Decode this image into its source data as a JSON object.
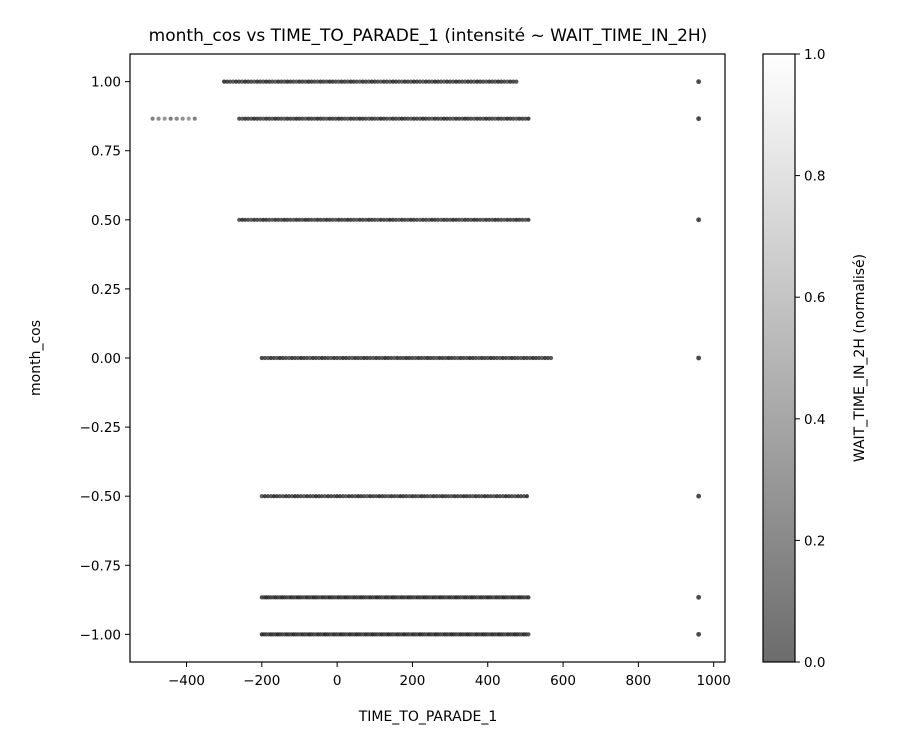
{
  "chart_data": {
    "type": "scatter",
    "title": "month_cos vs TIME_TO_PARADE_1 (intensité ~ WAIT_TIME_IN_2H)",
    "xlabel": "TIME_TO_PARADE_1",
    "ylabel": "month_cos",
    "xlim": [
      -550,
      1030
    ],
    "ylim": [
      -1.1,
      1.1
    ],
    "x_ticks": [
      -400,
      -200,
      0,
      200,
      400,
      600,
      800,
      1000
    ],
    "x_tick_labels": [
      "−400",
      "−200",
      "0",
      "200",
      "400",
      "600",
      "800",
      "1000"
    ],
    "y_ticks": [
      1.0,
      0.75,
      0.5,
      0.25,
      0.0,
      -0.25,
      -0.5,
      -0.75,
      -1.0
    ],
    "y_tick_labels": [
      "1.00",
      "0.75",
      "0.50",
      "0.25",
      "0.00",
      "−0.25",
      "−0.50",
      "−0.75",
      "−1.00"
    ],
    "grid": false,
    "colorbar": {
      "label": "WAIT_TIME_IN_2H (normalisé)",
      "range": [
        0,
        1
      ],
      "ticks": [
        0.0,
        0.2,
        0.4,
        0.6,
        0.8,
        1.0
      ],
      "tick_labels": [
        "0.0",
        "0.2",
        "0.4",
        "0.6",
        "0.8",
        "1.0"
      ],
      "colormap": "gray (semi-transparent)",
      "color_low": "#6c6c6c",
      "color_high": "#ffffff"
    },
    "series": [
      {
        "y": 1.0,
        "x_min": -300,
        "x_max": 480,
        "x_step": 8,
        "outlier_x": 960,
        "intensity": 0.05
      },
      {
        "y": 0.866,
        "x_min": -260,
        "x_max": 510,
        "x_step": 8,
        "outlier_x": 960,
        "intensity": 0.05
      },
      {
        "y": 0.866,
        "x_min": -490,
        "x_max": -375,
        "x_step": 16,
        "intensity": 0.35
      },
      {
        "y": 0.5,
        "x_min": -260,
        "x_max": 510,
        "x_step": 8,
        "outlier_x": 960,
        "intensity": 0.05
      },
      {
        "y": 0.0,
        "x_min": -200,
        "x_max": 570,
        "x_step": 8,
        "outlier_x": 960,
        "intensity": 0.05
      },
      {
        "y": -0.5,
        "x_min": -200,
        "x_max": 510,
        "x_step": 8,
        "outlier_x": 960,
        "intensity": 0.05
      },
      {
        "y": -0.866,
        "x_min": -200,
        "x_max": 510,
        "x_step": 6,
        "outlier_x": 960,
        "intensity": 0.05
      },
      {
        "y": -1.0,
        "x_min": -200,
        "x_max": 510,
        "x_step": 6,
        "outlier_x": 960,
        "intensity": 0.05
      }
    ]
  }
}
